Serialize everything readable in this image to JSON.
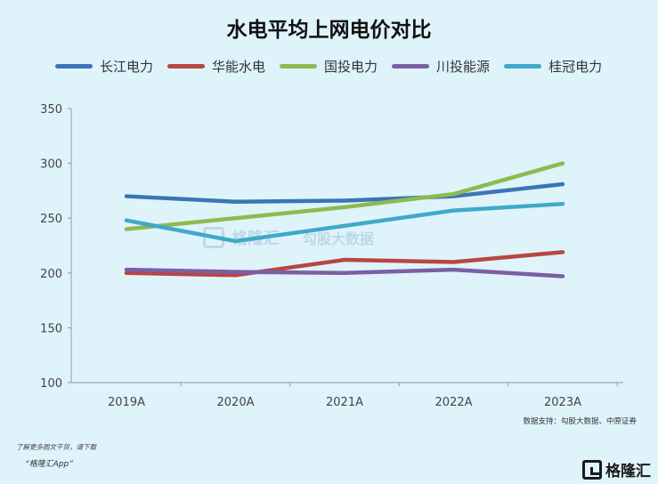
{
  "title": "水电平均上网电价对比",
  "source": "数据支持：勾股大数据、中原证券",
  "footer": {
    "note": "了解更多图文干货，请下载",
    "app": "“格隆汇App”"
  },
  "brand": "格隆汇",
  "watermark": {
    "left": "格隆汇",
    "right": "勾股大数据"
  },
  "chart_data": {
    "type": "line",
    "categories": [
      "2019A",
      "2020A",
      "2021A",
      "2022A",
      "2023A"
    ],
    "ylim": [
      100,
      350
    ],
    "yticks": [
      100,
      150,
      200,
      250,
      300,
      350
    ],
    "grid": false,
    "legend_position": "top",
    "series": [
      {
        "name": "长江电力",
        "color": "#3d74b6",
        "values": [
          270,
          265,
          266,
          270,
          281
        ]
      },
      {
        "name": "华能水电",
        "color": "#b84642",
        "values": [
          200,
          198,
          212,
          210,
          219
        ]
      },
      {
        "name": "国投电力",
        "color": "#8cbb4f",
        "values": [
          240,
          250,
          260,
          272,
          300
        ]
      },
      {
        "name": "川投能源",
        "color": "#7a5fa6",
        "values": [
          203,
          201,
          200,
          203,
          197
        ]
      },
      {
        "name": "桂冠电力",
        "color": "#3fa9c9",
        "values": [
          248,
          229,
          243,
          257,
          263
        ]
      }
    ]
  }
}
